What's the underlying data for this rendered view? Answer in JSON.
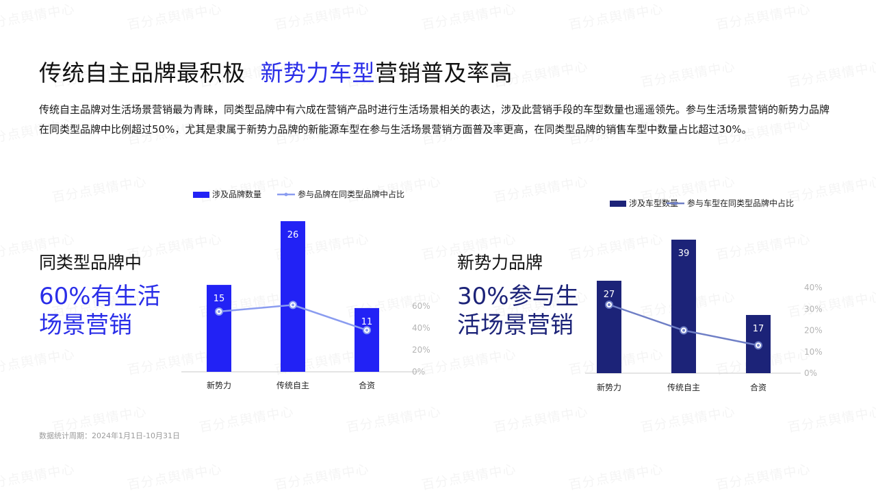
{
  "title": {
    "prefix": "传统自主品牌最积极",
    "highlight": "新势力车型",
    "suffix": "营销普及率高"
  },
  "description": "传统自主品牌对生活场景营销最为青睐，同类型品牌中有六成在营销产品时进行生活场景相关的表达，涉及此营销手段的车型数量也遥遥领先。参与生活场景营销的新势力品牌在同类型品牌中比例超过50%，尤其是隶属于新势力品牌的新能源车型在参与生活场景营销方面普及率更高，在同类型品牌的销售车型中数量占比超过30%。",
  "left_panel": {
    "subtitle": "同类型品牌中",
    "headline_line1": "60%有生活",
    "headline_line2": "场景营销"
  },
  "right_panel": {
    "subtitle": "新势力品牌",
    "headline_line1": "30%参与生",
    "headline_line2": "活场景营销"
  },
  "footnote": "数据统计周期：2024年1月1日-10月31日",
  "watermark": "百分点舆情中心",
  "colors": {
    "accent": "#2a2ee8",
    "bar_left": "#2222f5",
    "line_left": "#8a9cf0",
    "bar_right": "#1c2378",
    "line_right": "#6f7fc6"
  },
  "chart_data": [
    {
      "type": "bar",
      "categories": [
        "新势力",
        "传统自主",
        "合资"
      ],
      "series": [
        {
          "name": "涉及品牌数量",
          "kind": "bar",
          "axis": "left",
          "values": [
            15,
            26,
            11
          ]
        },
        {
          "name": "参与品牌在同类型品牌中占比",
          "kind": "line",
          "axis": "right",
          "values": [
            55,
            61,
            38
          ]
        }
      ],
      "y_right_ticks": [
        "0%",
        "20%",
        "40%",
        "60%"
      ],
      "y_right_range": [
        0,
        60
      ],
      "y_left_range": [
        0,
        26
      ],
      "legend": "top",
      "grid": false
    },
    {
      "type": "bar",
      "categories": [
        "新势力",
        "传统自主",
        "合资"
      ],
      "series": [
        {
          "name": "涉及车型数量",
          "kind": "bar",
          "axis": "left",
          "values": [
            27,
            39,
            17
          ]
        },
        {
          "name": "参与车型在同类型品牌中占比",
          "kind": "line",
          "axis": "right",
          "values": [
            32,
            20,
            13
          ]
        }
      ],
      "y_right_ticks": [
        "0%",
        "10%",
        "20%",
        "30%",
        "40%"
      ],
      "y_right_range": [
        0,
        40
      ],
      "y_left_range": [
        0,
        39
      ],
      "legend": "top",
      "grid": false
    }
  ]
}
